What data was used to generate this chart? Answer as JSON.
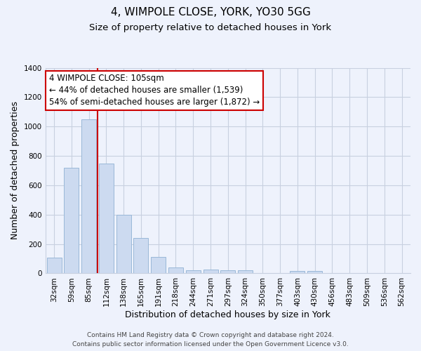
{
  "title": "4, WIMPOLE CLOSE, YORK, YO30 5GG",
  "subtitle": "Size of property relative to detached houses in York",
  "xlabel": "Distribution of detached houses by size in York",
  "ylabel": "Number of detached properties",
  "bar_labels": [
    "32sqm",
    "59sqm",
    "85sqm",
    "112sqm",
    "138sqm",
    "165sqm",
    "191sqm",
    "218sqm",
    "244sqm",
    "271sqm",
    "297sqm",
    "324sqm",
    "350sqm",
    "377sqm",
    "403sqm",
    "430sqm",
    "456sqm",
    "483sqm",
    "509sqm",
    "536sqm",
    "562sqm"
  ],
  "bar_values": [
    108,
    720,
    1050,
    750,
    400,
    240,
    110,
    40,
    22,
    28,
    22,
    20,
    0,
    0,
    15,
    15,
    0,
    0,
    0,
    0,
    0
  ],
  "bar_color": "#ccdaf0",
  "bar_edge_color": "#99b8d8",
  "vline_color": "#cc0000",
  "annotation_line1": "4 WIMPOLE CLOSE: 105sqm",
  "annotation_line2": "← 44% of detached houses are smaller (1,539)",
  "annotation_line3": "54% of semi-detached houses are larger (1,872) →",
  "annotation_box_color": "#ffffff",
  "annotation_box_edge": "#cc0000",
  "ylim": [
    0,
    1400
  ],
  "yticks": [
    0,
    200,
    400,
    600,
    800,
    1000,
    1200,
    1400
  ],
  "footer_line1": "Contains HM Land Registry data © Crown copyright and database right 2024.",
  "footer_line2": "Contains public sector information licensed under the Open Government Licence v3.0.",
  "bg_color": "#eef2fc",
  "plot_bg_color": "#eef2fc",
  "grid_color": "#c8d0e0",
  "title_fontsize": 11,
  "subtitle_fontsize": 9.5,
  "axis_label_fontsize": 9,
  "tick_fontsize": 7.5,
  "annotation_fontsize": 8.5,
  "footer_fontsize": 6.5
}
